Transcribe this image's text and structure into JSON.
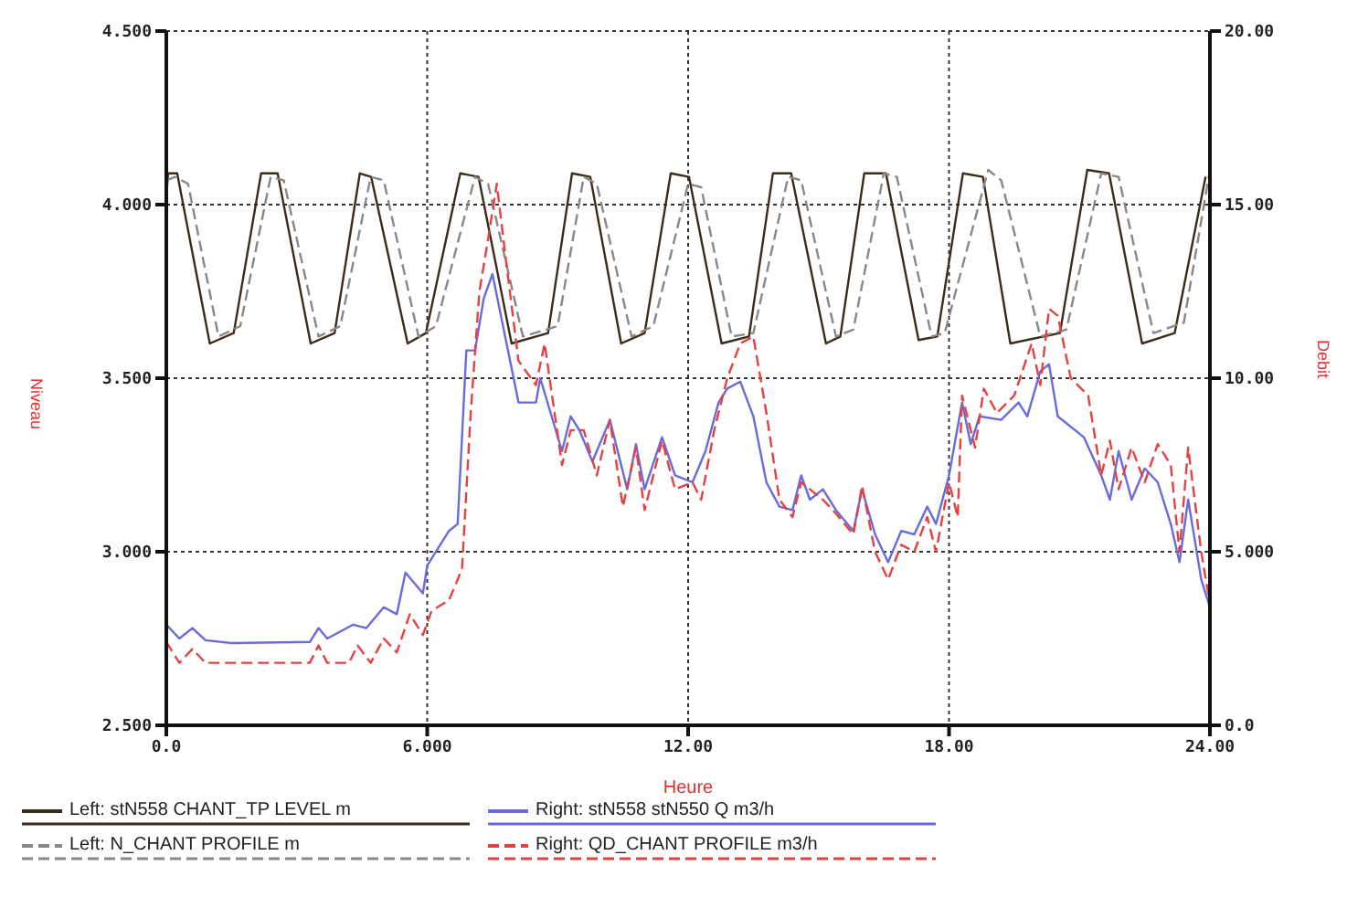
{
  "chart_data": {
    "type": "line",
    "xlabel": "Heure",
    "ylabel": "Niveau",
    "y2label": "Debit",
    "xlim": [
      0,
      24
    ],
    "xticks": [
      {
        "value": 0,
        "label": "0.0"
      },
      {
        "value": 6,
        "label": "6.000"
      },
      {
        "value": 12,
        "label": "12.00"
      },
      {
        "value": 18,
        "label": "18.00"
      },
      {
        "value": 24,
        "label": "24.00"
      }
    ],
    "ylim": [
      2.5,
      4.5
    ],
    "yticks": [
      {
        "value": 2.5,
        "label": "2.500"
      },
      {
        "value": 3,
        "label": "3.000"
      },
      {
        "value": 3.5,
        "label": "3.500"
      },
      {
        "value": 4,
        "label": "4.000"
      },
      {
        "value": 4.5,
        "label": "4.500"
      }
    ],
    "y2lim": [
      0,
      20
    ],
    "y2ticks": [
      {
        "value": 0,
        "label": "0.0"
      },
      {
        "value": 5,
        "label": "5.000"
      },
      {
        "value": 10,
        "label": "10.00"
      },
      {
        "value": 15,
        "label": "15.00"
      },
      {
        "value": 20,
        "label": "20.00"
      }
    ],
    "grid": true,
    "legend": "bottom",
    "marker": "none",
    "series": [
      {
        "name": "Left: stN558 CHANT_TP LEVEL m",
        "color": "#3b2b1b",
        "line_style": "solid",
        "x": [
          0,
          0.04,
          0.25,
          1.0,
          1.55,
          2.18,
          2.56,
          3.32,
          3.87,
          4.45,
          4.71,
          5.55,
          5.97,
          6.76,
          7.18,
          7.94,
          8.78,
          9.33,
          9.75,
          10.46,
          11.0,
          11.6,
          12.02,
          12.77,
          13.4,
          13.95,
          14.37,
          15.17,
          15.5,
          16.05,
          16.55,
          17.3,
          17.73,
          18.32,
          18.78,
          19.41,
          20.55,
          21.18,
          21.68,
          22.44,
          23.19,
          23.9
        ],
        "values": [
          4.02,
          4.09,
          4.09,
          3.6,
          3.63,
          4.09,
          4.09,
          3.6,
          3.63,
          4.09,
          4.08,
          3.6,
          3.63,
          4.09,
          4.08,
          3.6,
          3.63,
          4.09,
          4.08,
          3.6,
          3.63,
          4.09,
          4.08,
          3.6,
          3.62,
          4.09,
          4.09,
          3.6,
          3.62,
          4.09,
          4.09,
          3.61,
          3.62,
          4.09,
          4.08,
          3.6,
          3.63,
          4.1,
          4.09,
          3.6,
          3.63,
          4.08
        ]
      },
      {
        "name": "Right: stN558 stN550 Q m3/h",
        "color": "#6a6adf",
        "line_style": "solid",
        "axis": "y2",
        "x": [
          0,
          0.3,
          0.6,
          0.9,
          1.5,
          3.3,
          3.5,
          3.7,
          4.3,
          4.6,
          5.0,
          5.3,
          5.5,
          5.9,
          6.0,
          6.5,
          6.7,
          6.9,
          7.1,
          7.3,
          7.5,
          8.1,
          8.5,
          8.6,
          9.1,
          9.3,
          9.5,
          9.8,
          10.2,
          10.6,
          10.8,
          11.0,
          11.4,
          11.7,
          12.1,
          12.4,
          12.7,
          12.9,
          13.2,
          13.5,
          13.8,
          14.1,
          14.4,
          14.6,
          14.8,
          15.1,
          15.4,
          15.8,
          16.0,
          16.3,
          16.6,
          16.9,
          17.2,
          17.5,
          17.7,
          18.0,
          18.3,
          18.5,
          18.7,
          19.2,
          19.6,
          19.8,
          20.1,
          20.3,
          20.5,
          21.1,
          21.5,
          21.7,
          21.9,
          22.2,
          22.5,
          22.8,
          23.1,
          23.3,
          23.5,
          23.8,
          24.0
        ],
        "values": [
          2.9,
          2.5,
          2.8,
          2.45,
          2.37,
          2.4,
          2.8,
          2.5,
          2.9,
          2.8,
          3.4,
          3.2,
          4.4,
          3.8,
          4.6,
          5.6,
          5.8,
          10.8,
          10.8,
          12.3,
          13.0,
          9.3,
          9.3,
          10.0,
          7.9,
          8.9,
          8.5,
          7.6,
          8.8,
          6.8,
          8.1,
          6.8,
          8.3,
          7.2,
          7.0,
          7.9,
          9.3,
          9.7,
          9.9,
          8.9,
          7.0,
          6.3,
          6.2,
          7.2,
          6.5,
          6.8,
          6.2,
          5.6,
          6.8,
          5.5,
          4.7,
          5.6,
          5.5,
          6.3,
          5.8,
          7.2,
          9.3,
          8.1,
          8.9,
          8.8,
          9.3,
          8.9,
          10.2,
          10.4,
          8.9,
          8.3,
          7.2,
          6.5,
          7.9,
          6.5,
          7.4,
          7.0,
          5.8,
          4.7,
          6.5,
          4.2,
          3.4
        ]
      },
      {
        "name": "Left: N_CHANT PROFILE m",
        "color": "#888888",
        "line_style": "dashed",
        "x": [
          0,
          0.2,
          0.5,
          1.2,
          1.7,
          2.4,
          2.7,
          3.5,
          4.0,
          4.7,
          5.0,
          5.8,
          6.2,
          7.1,
          7.4,
          8.2,
          9.0,
          9.6,
          9.9,
          10.7,
          11.2,
          12.0,
          12.3,
          13.0,
          13.5,
          14.3,
          14.6,
          15.4,
          15.8,
          16.5,
          16.8,
          17.6,
          17.9,
          18.9,
          19.2,
          20.1,
          20.7,
          21.5,
          21.9,
          22.7,
          23.4,
          24.0
        ],
        "values": [
          4.07,
          4.08,
          4.06,
          3.62,
          3.65,
          4.08,
          4.07,
          3.62,
          3.65,
          4.08,
          4.07,
          3.62,
          3.65,
          4.08,
          4.06,
          3.62,
          3.65,
          4.08,
          4.06,
          3.62,
          3.65,
          4.06,
          4.05,
          3.62,
          3.63,
          4.08,
          4.07,
          3.62,
          3.64,
          4.09,
          4.08,
          3.62,
          3.63,
          4.1,
          4.07,
          3.62,
          3.64,
          4.09,
          4.08,
          3.63,
          3.66,
          4.1
        ]
      },
      {
        "name": "Right: QD_CHANT PROFILE m3/h",
        "color": "#e84040",
        "line_style": "dashed",
        "axis": "y2",
        "x": [
          0,
          0.3,
          0.6,
          0.9,
          1.5,
          3.3,
          3.5,
          3.7,
          4.2,
          4.4,
          4.7,
          5.0,
          5.3,
          5.6,
          5.9,
          6.1,
          6.5,
          6.8,
          7.0,
          7.2,
          7.4,
          7.6,
          7.8,
          8.1,
          8.5,
          8.7,
          9.1,
          9.3,
          9.6,
          9.9,
          10.2,
          10.5,
          10.8,
          11.0,
          11.4,
          11.7,
          12.1,
          12.3,
          12.6,
          12.9,
          13.2,
          13.5,
          13.8,
          14.1,
          14.4,
          14.6,
          15.1,
          15.4,
          15.8,
          16.0,
          16.3,
          16.6,
          16.9,
          17.2,
          17.5,
          17.7,
          18.0,
          18.2,
          18.3,
          18.6,
          18.8,
          19.1,
          19.5,
          19.9,
          20.1,
          20.3,
          20.5,
          20.8,
          21.2,
          21.5,
          21.7,
          21.9,
          22.2,
          22.5,
          22.8,
          23.1,
          23.3,
          23.5,
          23.8,
          24.0
        ],
        "values": [
          2.4,
          1.8,
          2.2,
          1.8,
          1.8,
          1.8,
          2.3,
          1.8,
          1.8,
          2.3,
          1.8,
          2.5,
          2.1,
          3.2,
          2.6,
          3.3,
          3.6,
          4.5,
          9.0,
          12.5,
          14.0,
          15.6,
          13.5,
          10.5,
          9.8,
          11.0,
          7.5,
          8.5,
          8.5,
          7.2,
          8.8,
          6.3,
          8.0,
          6.2,
          8.2,
          6.8,
          7.0,
          6.5,
          8.5,
          10.0,
          11.0,
          11.2,
          9.0,
          6.5,
          6.0,
          7.0,
          6.5,
          6.1,
          5.5,
          6.9,
          5.0,
          4.2,
          5.2,
          5.0,
          6.0,
          5.0,
          7.0,
          6.0,
          9.5,
          8.0,
          9.7,
          9.0,
          9.5,
          11.0,
          9.8,
          12.0,
          11.8,
          10.0,
          9.5,
          7.2,
          8.2,
          6.8,
          8.0,
          7.0,
          8.1,
          7.5,
          5.0,
          8.0,
          5.0,
          3.5
        ]
      }
    ]
  }
}
